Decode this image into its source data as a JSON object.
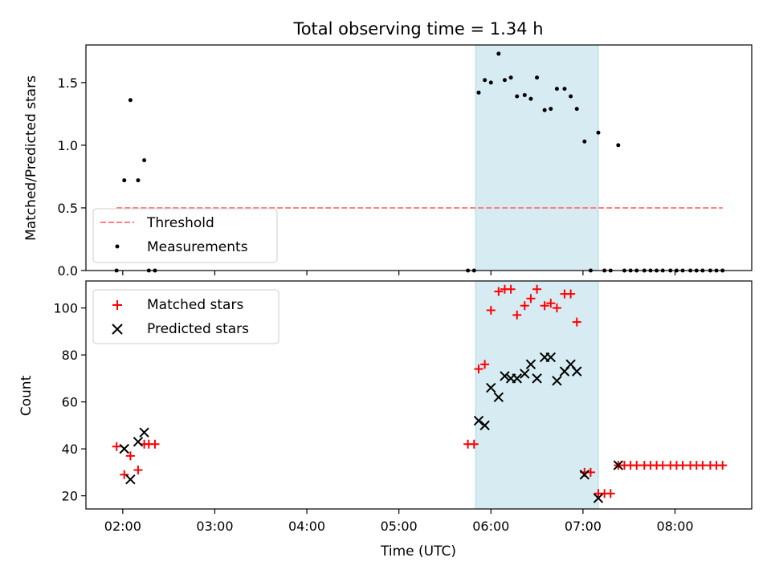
{
  "figure": {
    "title": "Total observing time = 1.34 h",
    "xlabel": "Time (UTC)",
    "xticks": [
      {
        "value": 120,
        "label": "02:00"
      },
      {
        "value": 180,
        "label": "03:00"
      },
      {
        "value": 240,
        "label": "04:00"
      },
      {
        "value": 300,
        "label": "05:00"
      },
      {
        "value": 360,
        "label": "06:00"
      },
      {
        "value": 420,
        "label": "07:00"
      },
      {
        "value": 480,
        "label": "08:00"
      }
    ],
    "xlim": [
      96,
      530
    ],
    "shaded_interval": {
      "x": [
        350,
        430
      ],
      "color": "#add8e6"
    }
  },
  "chart_data": [
    {
      "type": "scatter",
      "ylabel": "Matched/Predicted stars",
      "ylim": [
        0,
        1.8
      ],
      "yticks": [
        {
          "value": 0,
          "label": "0.0"
        },
        {
          "value": 0.5,
          "label": "0.5"
        },
        {
          "value": 1.0,
          "label": "1.0"
        },
        {
          "value": 1.5,
          "label": "1.5"
        }
      ],
      "legend": {
        "placement": "lower-left"
      },
      "threshold": {
        "name": "Threshold",
        "value": 0.5,
        "x": [
          116,
          511
        ],
        "color": "#ff7f7f",
        "style": "dashed"
      },
      "series": [
        {
          "name": "Measurements",
          "marker": "dot",
          "color": "#000000",
          "points": [
            [
              116,
              0
            ],
            [
              121,
              0.72
            ],
            [
              125,
              1.36
            ],
            [
              130,
              0.72
            ],
            [
              134,
              0.88
            ],
            [
              137,
              0
            ],
            [
              141,
              0
            ],
            [
              345,
              0
            ],
            [
              349,
              0
            ],
            [
              352,
              1.42
            ],
            [
              356,
              1.52
            ],
            [
              360,
              1.5
            ],
            [
              365,
              1.73
            ],
            [
              369,
              1.52
            ],
            [
              373,
              1.54
            ],
            [
              377,
              1.39
            ],
            [
              382,
              1.4
            ],
            [
              386,
              1.37
            ],
            [
              390,
              1.54
            ],
            [
              395,
              1.28
            ],
            [
              399,
              1.29
            ],
            [
              403,
              1.45
            ],
            [
              408,
              1.45
            ],
            [
              412,
              1.39
            ],
            [
              416,
              1.29
            ],
            [
              421,
              1.03
            ],
            [
              425,
              0
            ],
            [
              430,
              1.1
            ],
            [
              434,
              0
            ],
            [
              438,
              0
            ],
            [
              443,
              1.0
            ],
            [
              447,
              0
            ],
            [
              451,
              0
            ],
            [
              455,
              0
            ],
            [
              460,
              0
            ],
            [
              464,
              0
            ],
            [
              468,
              0
            ],
            [
              472,
              0
            ],
            [
              477,
              0
            ],
            [
              481,
              0
            ],
            [
              485,
              0
            ],
            [
              490,
              0
            ],
            [
              494,
              0
            ],
            [
              498,
              0
            ],
            [
              503,
              0
            ],
            [
              507,
              0
            ],
            [
              511,
              0
            ]
          ]
        }
      ]
    },
    {
      "type": "scatter",
      "ylabel": "Count",
      "ylim": [
        14.4,
        111.5
      ],
      "yticks": [
        {
          "value": 20,
          "label": "20"
        },
        {
          "value": 40,
          "label": "40"
        },
        {
          "value": 60,
          "label": "60"
        },
        {
          "value": 80,
          "label": "80"
        },
        {
          "value": 100,
          "label": "100"
        }
      ],
      "legend": {
        "placement": "upper-left"
      },
      "series": [
        {
          "name": "Matched stars",
          "marker": "plus",
          "color": "#ff0000",
          "points": [
            [
              116,
              41
            ],
            [
              121,
              29
            ],
            [
              125,
              37
            ],
            [
              130,
              31
            ],
            [
              134,
              42
            ],
            [
              137,
              42
            ],
            [
              141,
              42
            ],
            [
              345,
              42
            ],
            [
              349,
              42
            ],
            [
              352,
              74
            ],
            [
              356,
              76
            ],
            [
              360,
              99
            ],
            [
              365,
              107
            ],
            [
              369,
              108
            ],
            [
              373,
              108
            ],
            [
              377,
              97
            ],
            [
              382,
              101
            ],
            [
              386,
              104
            ],
            [
              390,
              108
            ],
            [
              395,
              101
            ],
            [
              399,
              102
            ],
            [
              403,
              100
            ],
            [
              408,
              106
            ],
            [
              412,
              106
            ],
            [
              416,
              94
            ],
            [
              421,
              30
            ],
            [
              425,
              30
            ],
            [
              430,
              21
            ],
            [
              434,
              21
            ],
            [
              438,
              21
            ],
            [
              443,
              33
            ],
            [
              447,
              33
            ],
            [
              451,
              33
            ],
            [
              455,
              33
            ],
            [
              460,
              33
            ],
            [
              464,
              33
            ],
            [
              468,
              33
            ],
            [
              472,
              33
            ],
            [
              477,
              33
            ],
            [
              481,
              33
            ],
            [
              485,
              33
            ],
            [
              490,
              33
            ],
            [
              494,
              33
            ],
            [
              498,
              33
            ],
            [
              503,
              33
            ],
            [
              507,
              33
            ],
            [
              511,
              33
            ]
          ]
        },
        {
          "name": "Predicted stars",
          "marker": "x",
          "color": "#000000",
          "points": [
            [
              121,
              40
            ],
            [
              125,
              27
            ],
            [
              130,
              43
            ],
            [
              134,
              47
            ],
            [
              352,
              52
            ],
            [
              356,
              50
            ],
            [
              360,
              66
            ],
            [
              365,
              62
            ],
            [
              369,
              71
            ],
            [
              373,
              70
            ],
            [
              377,
              70
            ],
            [
              382,
              72
            ],
            [
              386,
              76
            ],
            [
              390,
              70
            ],
            [
              395,
              79
            ],
            [
              399,
              79
            ],
            [
              403,
              69
            ],
            [
              408,
              73
            ],
            [
              412,
              76
            ],
            [
              416,
              73
            ],
            [
              421,
              29
            ],
            [
              430,
              19
            ],
            [
              443,
              33
            ]
          ]
        }
      ]
    }
  ]
}
